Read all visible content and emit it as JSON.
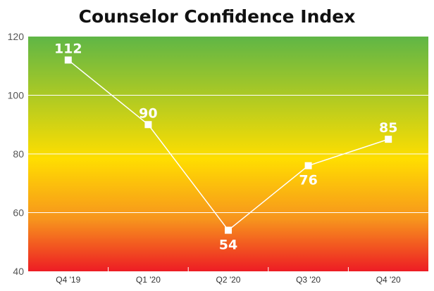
{
  "chart_data": {
    "type": "line",
    "title": "Counselor Confidence Index",
    "xlabel": "",
    "ylabel": "",
    "categories": [
      "Q4 '19",
      "Q1 '20",
      "Q2 '20",
      "Q3 '20",
      "Q4 '20"
    ],
    "series": [
      {
        "values": [
          112,
          90,
          54,
          76,
          85
        ]
      }
    ],
    "data_labels": [
      "112",
      "90",
      "54",
      "76",
      "85"
    ],
    "label_position": [
      "above",
      "above",
      "below",
      "below",
      "above"
    ],
    "ylim": [
      40,
      120
    ],
    "yticks": [
      40,
      60,
      80,
      100,
      120
    ],
    "y_tick_labels": [
      "40",
      "60",
      "80",
      "100",
      "120"
    ],
    "grid": true,
    "legend": "none",
    "colors": {
      "background_top": "#5fb646",
      "background_middle": "#ffde00",
      "background_lower": "#f7941d",
      "background_bottom": "#ed1c24",
      "line": "#ffffff",
      "marker": "#ffffff",
      "gridline": "#ffffff",
      "data_label": "#ffffff",
      "title": "#111111",
      "tick_label": "#555555"
    }
  }
}
